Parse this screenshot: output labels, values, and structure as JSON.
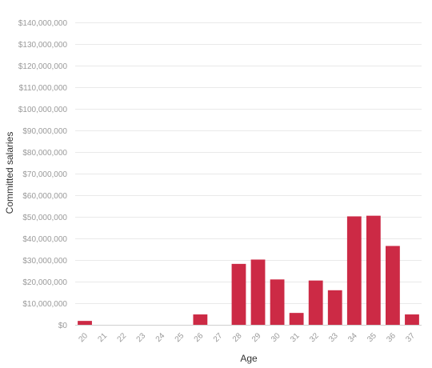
{
  "chart_data": {
    "type": "bar",
    "title": "",
    "xlabel": "Age",
    "ylabel": "Committed salaries",
    "categories": [
      "20",
      "21",
      "22",
      "23",
      "24",
      "25",
      "26",
      "27",
      "28",
      "29",
      "30",
      "31",
      "32",
      "33",
      "34",
      "35",
      "36",
      "37"
    ],
    "values": [
      1800000,
      0,
      0,
      0,
      0,
      0,
      4800000,
      0,
      28200000,
      30200000,
      21000000,
      5500000,
      20500000,
      16000000,
      50200000,
      50500000,
      36500000,
      4800000
    ],
    "ylim": [
      0,
      140000000
    ],
    "yticks": [
      0,
      10000000,
      20000000,
      30000000,
      40000000,
      50000000,
      60000000,
      70000000,
      80000000,
      90000000,
      100000000,
      110000000,
      120000000,
      130000000,
      140000000
    ],
    "ytick_labels": [
      "$0",
      "$10,000,000",
      "$20,000,000",
      "$30,000,000",
      "$40,000,000",
      "$50,000,000",
      "$60,000,000",
      "$70,000,000",
      "$80,000,000",
      "$90,000,000",
      "$100,000,000",
      "$110,000,000",
      "$120,000,000",
      "$130,000,000",
      "$140,000,000"
    ],
    "grid": true,
    "bar_color": "#cc2a45"
  }
}
